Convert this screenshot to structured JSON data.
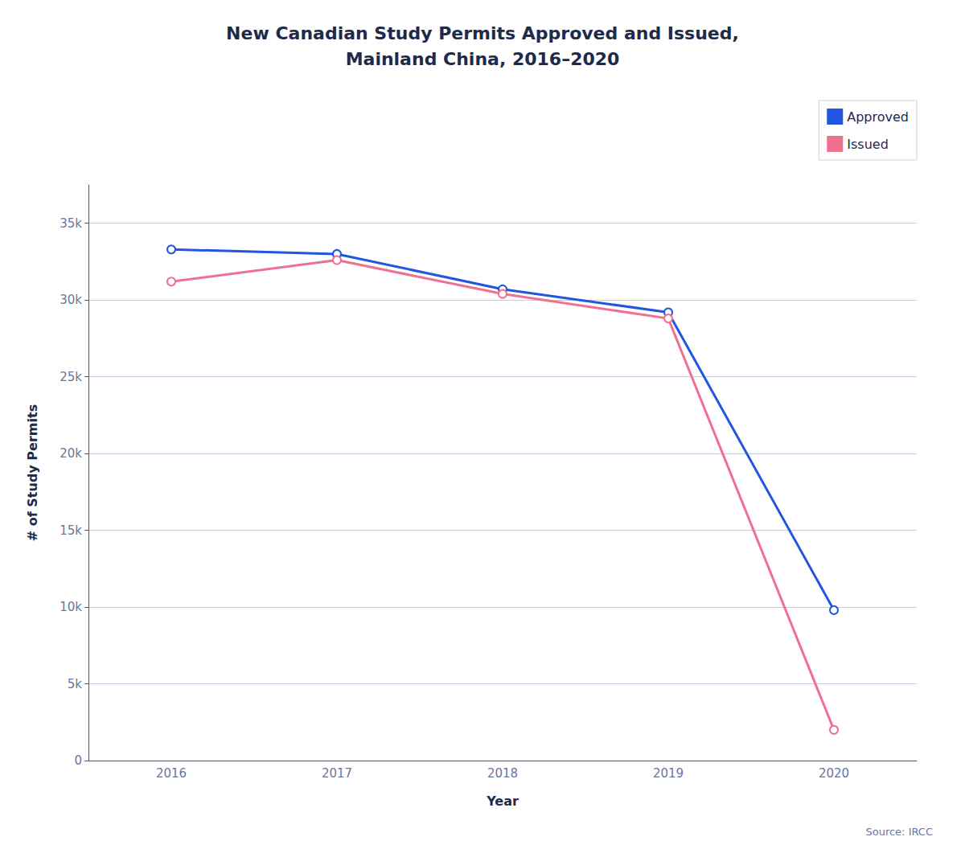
{
  "chart_data": {
    "type": "line",
    "title": "New Canadian Study Permits Approved and Issued,\nMainland China, 2016–2020",
    "xlabel": "Year",
    "ylabel": "# of Study Permits",
    "categories": [
      "2016",
      "2017",
      "2018",
      "2019",
      "2020"
    ],
    "series": [
      {
        "name": "Approved",
        "color": "#2255e0",
        "values": [
          33300,
          33000,
          30700,
          29200,
          9800
        ]
      },
      {
        "name": "Issued",
        "color": "#f07090",
        "values": [
          31200,
          32600,
          30400,
          28800,
          2000
        ]
      }
    ],
    "ylim": [
      0,
      37500
    ],
    "yticks": [
      0,
      {
        "value": 5000,
        "label": "5k"
      },
      {
        "value": 10000,
        "label": "10k"
      },
      {
        "value": 15000,
        "label": "15k"
      },
      {
        "value": 20000,
        "label": "20k"
      },
      {
        "value": 25000,
        "label": "25k"
      },
      {
        "value": 30000,
        "label": "30k"
      },
      {
        "value": 35000,
        "label": "35k"
      }
    ],
    "grid": true,
    "legend": "upper right",
    "marker": "circle",
    "annotations": [
      "Source: IRCC"
    ]
  }
}
